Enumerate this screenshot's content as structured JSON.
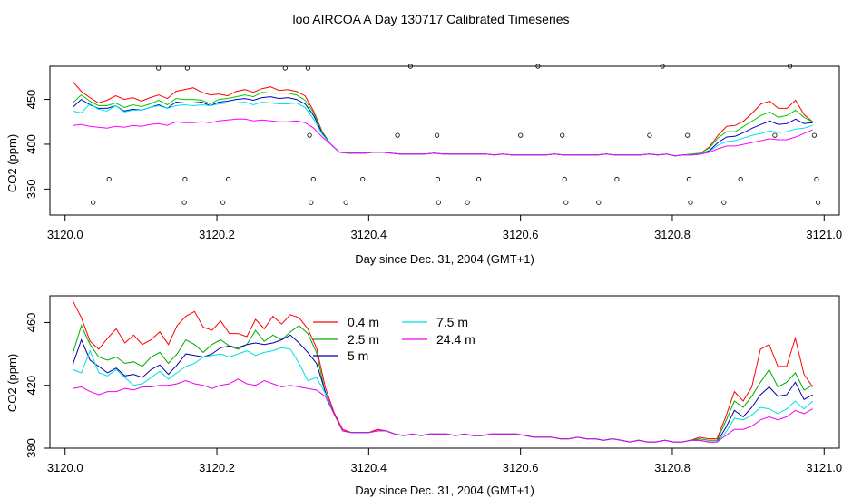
{
  "title": "loo AIRCOA A  Day 130717  Calibrated Timeseries",
  "chart_data": [
    {
      "type": "line",
      "xlabel": "Day since Dec. 31, 2004 (GMT+1)",
      "ylabel": "CO2 (ppm)",
      "xlim": [
        3119.98,
        3121.02
      ],
      "ylim": [
        321,
        487
      ],
      "xticks": [
        3120.0,
        3120.2,
        3120.4,
        3120.6,
        3120.8,
        3121.0
      ],
      "xtick_labels": [
        "3120.0",
        "3120.2",
        "3120.4",
        "3120.6",
        "3120.8",
        "3121.0"
      ],
      "yticks": [
        350,
        400,
        450
      ],
      "ytick_labels": [
        "350",
        "400",
        "450"
      ],
      "grid": false,
      "series": [
        {
          "color": "#ff0000",
          "values": [
            470,
            459,
            452,
            446,
            449,
            454,
            450,
            452,
            448,
            452,
            455,
            451,
            459,
            461,
            463,
            458,
            455,
            456,
            454,
            459,
            461,
            458,
            462,
            464,
            460,
            461,
            459,
            454,
            437,
            414,
            400,
            391,
            390,
            390,
            390,
            391,
            391,
            390,
            389,
            389,
            389,
            389,
            390,
            389,
            389,
            389,
            389,
            389,
            389,
            388,
            389,
            388,
            388,
            388,
            388,
            388,
            389,
            388,
            388,
            388,
            388,
            388,
            389,
            388,
            388,
            388,
            388,
            389,
            388,
            389,
            387,
            388,
            389,
            390,
            397,
            410,
            420,
            421,
            426,
            435,
            445,
            448,
            440,
            440,
            449,
            433,
            425
          ]
        },
        {
          "color": "#00cc00",
          "values": [
            446,
            455,
            448,
            443,
            443,
            446,
            441,
            444,
            442,
            445,
            449,
            444,
            451,
            450,
            450,
            449,
            445,
            450,
            451,
            453,
            455,
            453,
            458,
            457,
            457,
            457,
            455,
            449,
            435,
            413,
            400,
            391,
            390,
            390,
            390,
            391,
            391,
            390,
            389,
            389,
            389,
            389,
            390,
            389,
            389,
            389,
            389,
            389,
            389,
            388,
            389,
            388,
            388,
            388,
            388,
            388,
            389,
            388,
            388,
            388,
            388,
            388,
            389,
            388,
            388,
            388,
            388,
            389,
            388,
            389,
            387,
            388,
            389,
            390,
            396,
            407,
            414,
            414,
            420,
            426,
            432,
            436,
            430,
            432,
            438,
            430,
            425
          ]
        },
        {
          "color": "#0000cc",
          "values": [
            441,
            450,
            444,
            440,
            440,
            443,
            437,
            439,
            438,
            441,
            444,
            440,
            447,
            446,
            446,
            447,
            443,
            447,
            448,
            450,
            451,
            449,
            452,
            453,
            451,
            452,
            450,
            445,
            432,
            412,
            400,
            391,
            390,
            390,
            390,
            391,
            391,
            390,
            389,
            389,
            389,
            389,
            390,
            389,
            389,
            389,
            389,
            389,
            389,
            388,
            389,
            388,
            388,
            388,
            388,
            388,
            389,
            388,
            388,
            388,
            388,
            388,
            389,
            388,
            388,
            388,
            388,
            389,
            388,
            389,
            387,
            388,
            388,
            389,
            393,
            402,
            408,
            409,
            413,
            418,
            422,
            426,
            422,
            423,
            428,
            423,
            424
          ]
        },
        {
          "color": "#00e5e5",
          "values": [
            437,
            435,
            445,
            439,
            437,
            443,
            436,
            438,
            438,
            441,
            443,
            440,
            443,
            444,
            443,
            444,
            443,
            445,
            446,
            446,
            447,
            444,
            447,
            446,
            445,
            445,
            446,
            441,
            428,
            411,
            400,
            391,
            390,
            390,
            390,
            391,
            391,
            390,
            389,
            389,
            389,
            389,
            390,
            389,
            389,
            389,
            389,
            389,
            389,
            388,
            389,
            388,
            388,
            388,
            388,
            388,
            389,
            388,
            388,
            388,
            388,
            388,
            389,
            388,
            388,
            388,
            388,
            389,
            388,
            389,
            387,
            388,
            388,
            389,
            392,
            399,
            403,
            404,
            407,
            410,
            412,
            415,
            413,
            414,
            417,
            418,
            421
          ]
        },
        {
          "color": "#ff00ff",
          "values": [
            421,
            422,
            420,
            419,
            418,
            420,
            419,
            421,
            420,
            422,
            423,
            421,
            425,
            424,
            424,
            425,
            424,
            426,
            427,
            428,
            428,
            426,
            427,
            426,
            425,
            425,
            426,
            424,
            418,
            408,
            400,
            391,
            390,
            390,
            390,
            391,
            391,
            390,
            389,
            389,
            389,
            389,
            390,
            389,
            389,
            389,
            389,
            389,
            389,
            388,
            389,
            388,
            388,
            388,
            388,
            388,
            389,
            388,
            388,
            388,
            388,
            388,
            389,
            388,
            388,
            388,
            388,
            389,
            388,
            389,
            387,
            388,
            388,
            389,
            391,
            395,
            398,
            398,
            400,
            402,
            404,
            406,
            405,
            405,
            408,
            412,
            416
          ]
        }
      ],
      "flag_points": {
        "x": [
          3120.037,
          3120.058,
          3120.123,
          3120.157,
          3120.158,
          3120.161,
          3120.208,
          3120.215,
          3120.29,
          3120.32,
          3120.322,
          3120.324,
          3120.327,
          3120.37,
          3120.392,
          3120.438,
          3120.455,
          3120.49,
          3120.491,
          3120.492,
          3120.53,
          3120.545,
          3120.6,
          3120.623,
          3120.655,
          3120.658,
          3120.66,
          3120.703,
          3120.727,
          3120.77,
          3120.787,
          3120.82,
          3120.822,
          3120.824,
          3120.868,
          3120.89,
          3120.935,
          3120.955,
          3120.987,
          3120.99,
          3120.992
        ],
        "y": [
          335,
          361,
          485,
          335,
          361,
          485,
          335,
          361,
          485,
          485,
          410,
          335,
          361,
          335,
          361,
          410,
          487,
          410,
          361,
          335,
          335,
          361,
          410,
          487,
          410,
          361,
          335,
          335,
          361,
          410,
          487,
          410,
          361,
          335,
          335,
          361,
          410,
          487,
          410,
          361,
          335
        ]
      }
    },
    {
      "type": "line",
      "xlabel": "Day since Dec. 31, 2004 (GMT+1)",
      "ylabel": "CO2 (ppm)",
      "xlim": [
        3119.98,
        3121.02
      ],
      "ylim": [
        380,
        477
      ],
      "xticks": [
        3120.0,
        3120.2,
        3120.4,
        3120.6,
        3120.8,
        3121.0
      ],
      "xtick_labels": [
        "3120.0",
        "3120.2",
        "3120.4",
        "3120.6",
        "3120.8",
        "3121.0"
      ],
      "yticks": [
        380,
        420,
        460
      ],
      "ytick_labels": [
        "380",
        "420",
        "460"
      ],
      "grid": false,
      "legend_position": "top-left-center",
      "series": [
        {
          "name": "0.4 m",
          "color": "#ff0000",
          "values": [
            474,
            463,
            448,
            443,
            450,
            456,
            447,
            452,
            446,
            449,
            454,
            446,
            458,
            464,
            467,
            457,
            455,
            461,
            453,
            453,
            451,
            462,
            456,
            464,
            459,
            465,
            463,
            456,
            444,
            419,
            403,
            392,
            390,
            390,
            390,
            392,
            391,
            389,
            388,
            389,
            388,
            389,
            389,
            389,
            388,
            389,
            388,
            388,
            389,
            389,
            389,
            389,
            388,
            387,
            387,
            387,
            386,
            386,
            387,
            386,
            386,
            385,
            386,
            385,
            384,
            385,
            384,
            384,
            385,
            384,
            384,
            385,
            387,
            386,
            386,
            400,
            416,
            410,
            419,
            443,
            446,
            432,
            432,
            450,
            427,
            419
          ]
        },
        {
          "name": "2.5 m",
          "color": "#00aa00",
          "values": [
            440,
            458,
            446,
            438,
            436,
            438,
            434,
            435,
            432,
            438,
            441,
            434,
            440,
            449,
            446,
            441,
            446,
            449,
            445,
            443,
            446,
            455,
            448,
            452,
            449,
            454,
            458,
            453,
            441,
            415,
            402,
            391,
            390,
            390,
            390,
            391,
            391,
            389,
            388,
            389,
            388,
            389,
            389,
            389,
            388,
            389,
            388,
            388,
            389,
            389,
            389,
            389,
            388,
            387,
            387,
            387,
            386,
            386,
            387,
            386,
            386,
            385,
            386,
            385,
            384,
            385,
            384,
            384,
            385,
            384,
            384,
            385,
            386,
            385,
            385,
            397,
            410,
            406,
            413,
            422,
            430,
            419,
            422,
            428,
            417,
            420
          ]
        },
        {
          "name": "5 m",
          "color": "#0000aa",
          "values": [
            433,
            449,
            436,
            432,
            428,
            431,
            426,
            427,
            425,
            430,
            433,
            427,
            433,
            440,
            439,
            438,
            440,
            444,
            445,
            444,
            446,
            447,
            446,
            447,
            449,
            452,
            447,
            441,
            434,
            416,
            402,
            391,
            390,
            390,
            390,
            391,
            391,
            389,
            388,
            389,
            388,
            389,
            389,
            389,
            388,
            389,
            388,
            388,
            389,
            389,
            389,
            389,
            388,
            387,
            387,
            387,
            386,
            386,
            387,
            386,
            386,
            385,
            386,
            385,
            384,
            385,
            384,
            384,
            385,
            384,
            384,
            385,
            385,
            384,
            384,
            393,
            404,
            400,
            406,
            414,
            419,
            413,
            414,
            422,
            411,
            414
          ]
        },
        {
          "name": "7.5 m",
          "color": "#00dddd",
          "values": [
            430,
            428,
            442,
            428,
            426,
            430,
            425,
            420,
            421,
            425,
            429,
            424,
            428,
            432,
            434,
            438,
            439,
            440,
            438,
            440,
            442,
            439,
            441,
            442,
            444,
            443,
            434,
            423,
            425,
            415,
            402,
            391,
            390,
            390,
            390,
            391,
            391,
            389,
            388,
            389,
            388,
            389,
            389,
            389,
            388,
            389,
            388,
            388,
            389,
            389,
            389,
            389,
            388,
            387,
            387,
            387,
            386,
            386,
            387,
            386,
            386,
            385,
            386,
            385,
            384,
            385,
            384,
            384,
            385,
            384,
            384,
            385,
            385,
            384,
            384,
            390,
            399,
            398,
            401,
            406,
            405,
            402,
            405,
            410,
            405,
            410
          ]
        },
        {
          "name": "24.4 m",
          "color": "#ee00ee",
          "values": [
            418,
            419,
            416,
            414,
            416,
            416,
            418,
            417,
            419,
            419,
            420,
            420,
            421,
            423,
            421,
            420,
            418,
            420,
            421,
            424,
            421,
            420,
            423,
            421,
            419,
            420,
            419,
            418,
            417,
            413,
            402,
            391,
            390,
            390,
            390,
            391,
            391,
            389,
            388,
            389,
            388,
            389,
            389,
            389,
            388,
            389,
            388,
            388,
            389,
            389,
            389,
            389,
            388,
            387,
            387,
            387,
            386,
            386,
            387,
            386,
            386,
            385,
            386,
            385,
            384,
            385,
            384,
            384,
            385,
            384,
            384,
            385,
            385,
            384,
            384,
            388,
            392,
            392,
            394,
            398,
            400,
            398,
            400,
            404,
            402,
            405
          ]
        }
      ]
    }
  ]
}
